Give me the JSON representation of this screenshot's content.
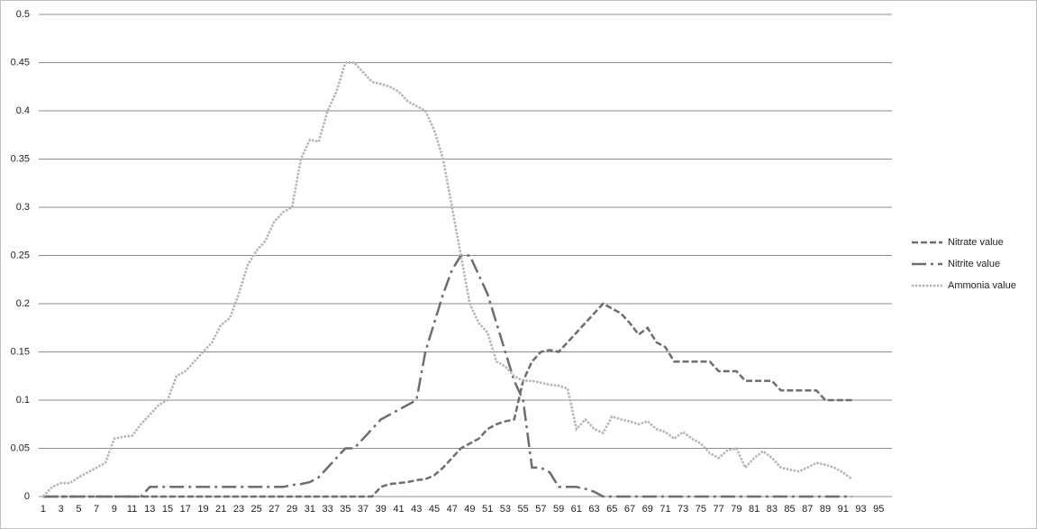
{
  "chart_data": {
    "type": "line",
    "categories": [
      1,
      null,
      3,
      null,
      5,
      null,
      7,
      null,
      9,
      null,
      11,
      null,
      13,
      null,
      15,
      null,
      17,
      null,
      19,
      null,
      21,
      null,
      23,
      null,
      25,
      null,
      27,
      null,
      29,
      null,
      31,
      null,
      33,
      null,
      35,
      null,
      37,
      null,
      39,
      null,
      41,
      null,
      43,
      null,
      45,
      null,
      47,
      null,
      49,
      null,
      51,
      null,
      53,
      null,
      55,
      null,
      57,
      null,
      59,
      null,
      61,
      null,
      63,
      null,
      65,
      null,
      67,
      null,
      69,
      null,
      71,
      null,
      73,
      null,
      75,
      null,
      77,
      null,
      79,
      null,
      81,
      null,
      83,
      null,
      85,
      null,
      87,
      null,
      89,
      null,
      91,
      null,
      93,
      null,
      95,
      null
    ],
    "series": [
      {
        "name": "Nitrate value",
        "color": "#6d6d6d",
        "line_style": "dash",
        "values": [
          0,
          0,
          0,
          0,
          0,
          0,
          0,
          0,
          0,
          0,
          0,
          0,
          0,
          0,
          0,
          0,
          0,
          0,
          0,
          0,
          0,
          0,
          0,
          0,
          0,
          0,
          0,
          0,
          0,
          0,
          0,
          0,
          0,
          0,
          0,
          0,
          0,
          0,
          0.01,
          0.013,
          0.014,
          0.015,
          0.017,
          0.018,
          0.022,
          0.03,
          0.04,
          0.05,
          0.055,
          0.06,
          0.07,
          0.075,
          0.078,
          0.08,
          0.12,
          0.14,
          0.15,
          0.152,
          0.15,
          0.16,
          0.17,
          0.18,
          0.19,
          0.2,
          0.195,
          0.19,
          0.18,
          0.168,
          0.175,
          0.16,
          0.155,
          0.14,
          0.14,
          0.14,
          0.14,
          0.14,
          0.13,
          0.13,
          0.13,
          0.12,
          0.12,
          0.12,
          0.12,
          0.11,
          0.11,
          0.11,
          0.11,
          0.11,
          0.1,
          0.1,
          0.1,
          0.1,
          null,
          null,
          null,
          null
        ]
      },
      {
        "name": "Nitrite value",
        "color": "#6d6d6d",
        "line_style": "dash-dot",
        "values": [
          0,
          0,
          0,
          0,
          0,
          0,
          0,
          0,
          0,
          0,
          0,
          0,
          0.01,
          0.01,
          0.01,
          0.01,
          0.01,
          0.01,
          0.01,
          0.01,
          0.01,
          0.01,
          0.01,
          0.01,
          0.01,
          0.01,
          0.01,
          0.01,
          0.012,
          0.013,
          0.015,
          0.02,
          0.03,
          0.04,
          0.05,
          0.05,
          0.06,
          0.07,
          0.08,
          0.085,
          0.09,
          0.095,
          0.1,
          0.15,
          0.18,
          0.21,
          0.235,
          0.25,
          0.25,
          0.23,
          0.21,
          0.18,
          0.15,
          0.12,
          0.1,
          0.03,
          0.03,
          0.025,
          0.01,
          0.01,
          0.01,
          0.008,
          0.005,
          0,
          0,
          0,
          0,
          0,
          0,
          0,
          0,
          0,
          0,
          0,
          0,
          0,
          0,
          0,
          0,
          0,
          0,
          0,
          0,
          0,
          0,
          0,
          0,
          0,
          0,
          0,
          0,
          0,
          null,
          null,
          null,
          null
        ]
      },
      {
        "name": "Ammonia value",
        "color": "#b3b3b3",
        "line_style": "dot",
        "values": [
          0,
          0.01,
          0.014,
          0.014,
          0.02,
          0.025,
          0.03,
          0.035,
          0.06,
          0.062,
          0.063,
          0.075,
          0.085,
          0.095,
          0.1,
          0.125,
          0.13,
          0.14,
          0.15,
          0.16,
          0.178,
          0.185,
          0.21,
          0.24,
          0.255,
          0.265,
          0.285,
          0.295,
          0.3,
          0.35,
          0.37,
          0.368,
          0.4,
          0.42,
          0.45,
          0.45,
          0.44,
          0.43,
          0.428,
          0.425,
          0.42,
          0.41,
          0.405,
          0.4,
          0.38,
          0.35,
          0.3,
          0.25,
          0.2,
          0.18,
          0.17,
          0.14,
          0.135,
          0.125,
          0.12,
          0.12,
          0.118,
          0.116,
          0.115,
          0.112,
          0.07,
          0.08,
          0.07,
          0.066,
          0.083,
          0.08,
          0.078,
          0.075,
          0.078,
          0.07,
          0.067,
          0.06,
          0.067,
          0.06,
          0.055,
          0.045,
          0.04,
          0.048,
          0.05,
          0.03,
          0.04,
          0.047,
          0.04,
          0.03,
          0.028,
          0.026,
          0.03,
          0.035,
          0.033,
          0.03,
          0.025,
          0.018,
          null,
          null,
          null,
          null
        ]
      }
    ],
    "ylim": [
      0,
      0.5
    ],
    "yticks": [
      0,
      0.05,
      0.1,
      0.15,
      0.2,
      0.25,
      0.3,
      0.35,
      0.4,
      0.45,
      0.5
    ],
    "grid": true,
    "legend": "right"
  }
}
